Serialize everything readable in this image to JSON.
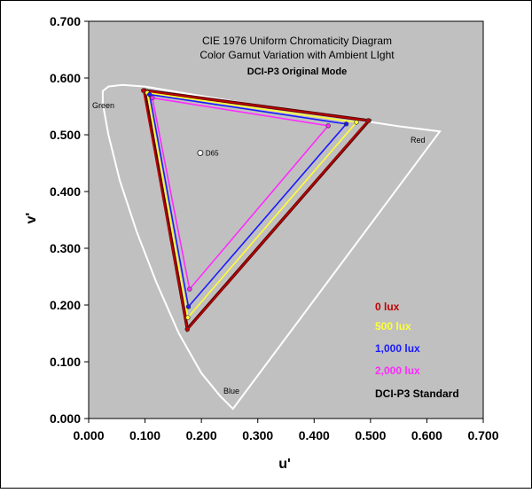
{
  "chart_data": {
    "type": "line",
    "title_lines": [
      "CIE 1976 Uniform Chromaticity Diagram",
      "Color Gamut Variation with Ambient LIght"
    ],
    "subtitle": "DCI-P3 Original Mode",
    "xlabel": "u'",
    "ylabel": "v'",
    "xlim": [
      0.0,
      0.7
    ],
    "ylim": [
      0.0,
      0.7
    ],
    "x_ticks": [
      "0.000",
      "0.100",
      "0.200",
      "0.300",
      "0.400",
      "0.500",
      "0.600",
      "0.700"
    ],
    "y_ticks": [
      "0.000",
      "0.100",
      "0.200",
      "0.300",
      "0.400",
      "0.500",
      "0.600",
      "0.700"
    ],
    "grid": false,
    "plot_background": "#c0c0c0",
    "locus_labels": [
      "Green",
      "Red",
      "Blue"
    ],
    "white_point": {
      "label": "D65",
      "x": 0.198,
      "y": 0.468
    },
    "spectral_locus": [
      [
        0.256,
        0.017
      ],
      [
        0.233,
        0.04
      ],
      [
        0.2,
        0.08
      ],
      [
        0.16,
        0.15
      ],
      [
        0.12,
        0.24
      ],
      [
        0.085,
        0.33
      ],
      [
        0.055,
        0.42
      ],
      [
        0.035,
        0.5
      ],
      [
        0.025,
        0.555
      ],
      [
        0.025,
        0.577
      ],
      [
        0.035,
        0.585
      ],
      [
        0.06,
        0.588
      ],
      [
        0.1,
        0.585
      ],
      [
        0.16,
        0.575
      ],
      [
        0.25,
        0.56
      ],
      [
        0.35,
        0.545
      ],
      [
        0.45,
        0.53
      ],
      [
        0.55,
        0.515
      ],
      [
        0.623,
        0.506
      ]
    ],
    "series": [
      {
        "name": "0 lux",
        "color": "#c00000",
        "points": [
          [
            0.175,
            0.157
          ],
          [
            0.097,
            0.578
          ],
          [
            0.496,
            0.525
          ]
        ]
      },
      {
        "name": "500 lux",
        "color": "#ffff33",
        "points": [
          [
            0.176,
            0.178
          ],
          [
            0.104,
            0.574
          ],
          [
            0.475,
            0.522
          ]
        ]
      },
      {
        "name": "1,000 lux",
        "color": "#1a1aff",
        "points": [
          [
            0.177,
            0.197
          ],
          [
            0.108,
            0.571
          ],
          [
            0.457,
            0.519
          ]
        ]
      },
      {
        "name": "2,000 lux",
        "color": "#ff2bff",
        "points": [
          [
            0.179,
            0.228
          ],
          [
            0.113,
            0.565
          ],
          [
            0.425,
            0.516
          ]
        ]
      },
      {
        "name": "DCI-P3 Standard",
        "color": "#5a0000",
        "points": [
          [
            0.175,
            0.158
          ],
          [
            0.099,
            0.578
          ],
          [
            0.497,
            0.525
          ]
        ]
      }
    ]
  }
}
